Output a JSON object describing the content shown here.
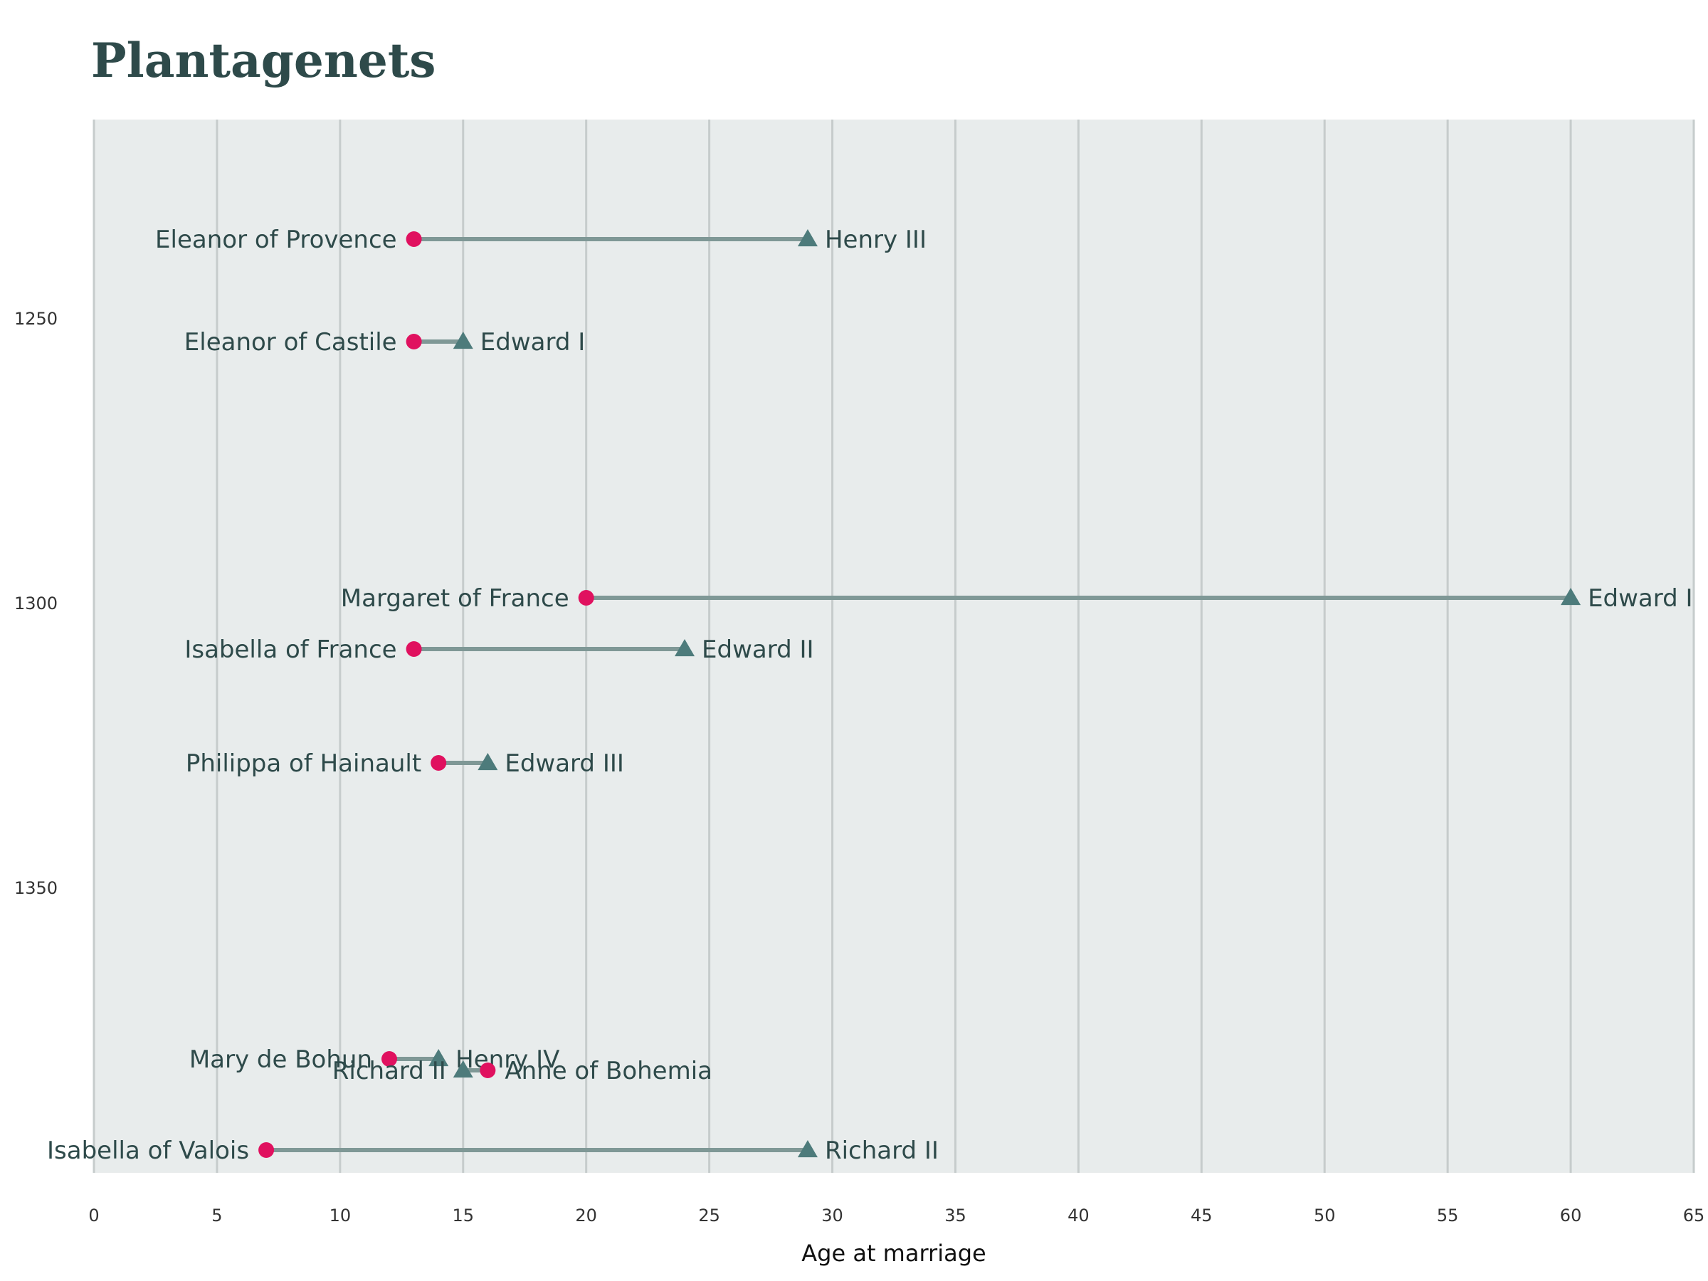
{
  "chart_data": {
    "type": "dumbbell",
    "title": "Plantagenets",
    "xlabel": "Age at marriage",
    "ylabel": "",
    "xlim": [
      0,
      65
    ],
    "ylim": [
      1215,
      1400
    ],
    "x_ticks": [
      "0",
      "5",
      "10",
      "15",
      "20",
      "25",
      "30",
      "35",
      "40",
      "45",
      "50",
      "55",
      "60",
      "65"
    ],
    "y_ticks": [
      "1250",
      "1300",
      "1350"
    ],
    "x_tick_values": [
      0,
      5,
      10,
      15,
      20,
      25,
      30,
      35,
      40,
      45,
      50,
      55,
      60,
      65
    ],
    "y_tick_values": [
      1250,
      1300,
      1350
    ],
    "grid": "vertical",
    "colors": {
      "background": "#e8ecec",
      "gridline": "#c6cccc",
      "connector": "#7f9896",
      "wife_marker": "#e0115f",
      "king_marker": "#4d7b7b",
      "text": "#2e4a4a"
    },
    "marriages": [
      {
        "year": 1236,
        "wife": "Eleanor of Provence",
        "wife_age": 13,
        "king": "Henry III",
        "king_age": 29
      },
      {
        "year": 1254,
        "wife": "Eleanor of Castile",
        "wife_age": 13,
        "king": "Edward I",
        "king_age": 15
      },
      {
        "year": 1299,
        "wife": "Margaret of France",
        "wife_age": 20,
        "king": "Edward I",
        "king_age": 60
      },
      {
        "year": 1308,
        "wife": "Isabella of France",
        "wife_age": 13,
        "king": "Edward II",
        "king_age": 24
      },
      {
        "year": 1328,
        "wife": "Philippa of Hainault",
        "wife_age": 14,
        "king": "Edward III",
        "king_age": 16
      },
      {
        "year": 1380,
        "wife": "Mary de Bohun",
        "wife_age": 12,
        "king": "Henry IV",
        "king_age": 14
      },
      {
        "year": 1382,
        "wife": "Anne of Bohemia",
        "wife_age": 16,
        "king": "Richard II",
        "king_age": 15
      },
      {
        "year": 1396,
        "wife": "Isabella of Valois",
        "wife_age": 7,
        "king": "Richard II",
        "king_age": 29
      }
    ]
  }
}
